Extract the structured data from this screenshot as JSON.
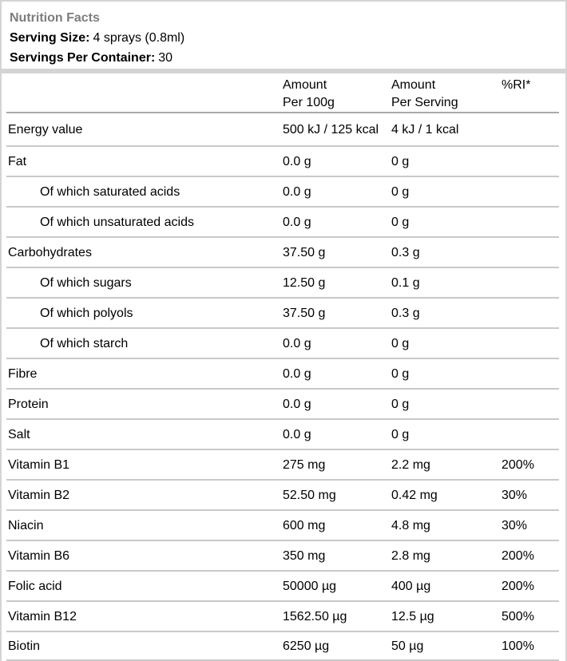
{
  "header": {
    "title": "Nutrition Facts",
    "serving_size_label": "Serving Size:",
    "serving_size_value": "4 sprays (0.8ml)",
    "servings_per_container_label": "Servings Per Container:",
    "servings_per_container_value": "30"
  },
  "table": {
    "columns": {
      "name": "",
      "per_100g_line1": "Amount",
      "per_100g_line2": "Per 100g",
      "per_serving_line1": "Amount",
      "per_serving_line2": "Per Serving",
      "ri": "%RI*"
    },
    "rows": [
      {
        "name": "Energy value",
        "indent": false,
        "per_100g": "500 kJ / 125 kcal",
        "per_serving": "4 kJ / 1 kcal",
        "ri": ""
      },
      {
        "name": "Fat",
        "indent": false,
        "per_100g": "0.0 g",
        "per_serving": "0 g",
        "ri": ""
      },
      {
        "name": "Of which saturated acids",
        "indent": true,
        "per_100g": "0.0 g",
        "per_serving": "0 g",
        "ri": ""
      },
      {
        "name": "Of which unsaturated acids",
        "indent": true,
        "per_100g": "0.0 g",
        "per_serving": "0 g",
        "ri": ""
      },
      {
        "name": "Carbohydrates",
        "indent": false,
        "per_100g": "37.50 g",
        "per_serving": "0.3 g",
        "ri": ""
      },
      {
        "name": "Of which sugars",
        "indent": true,
        "per_100g": "12.50 g",
        "per_serving": "0.1 g",
        "ri": ""
      },
      {
        "name": "Of which polyols",
        "indent": true,
        "per_100g": "37.50 g",
        "per_serving": "0.3 g",
        "ri": ""
      },
      {
        "name": "Of which starch",
        "indent": true,
        "per_100g": "0.0 g",
        "per_serving": "0 g",
        "ri": ""
      },
      {
        "name": "Fibre",
        "indent": false,
        "per_100g": "0.0 g",
        "per_serving": "0 g",
        "ri": ""
      },
      {
        "name": "Protein",
        "indent": false,
        "per_100g": "0.0 g",
        "per_serving": "0 g",
        "ri": ""
      },
      {
        "name": "Salt",
        "indent": false,
        "per_100g": "0.0 g",
        "per_serving": "0 g",
        "ri": ""
      },
      {
        "name": "Vitamin B1",
        "indent": false,
        "per_100g": "275 mg",
        "per_serving": "2.2 mg",
        "ri": "200%"
      },
      {
        "name": "Vitamin B2",
        "indent": false,
        "per_100g": "52.50 mg",
        "per_serving": "0.42 mg",
        "ri": "30%"
      },
      {
        "name": "Niacin",
        "indent": false,
        "per_100g": "600 mg",
        "per_serving": "4.8 mg",
        "ri": "30%"
      },
      {
        "name": "Vitamin B6",
        "indent": false,
        "per_100g": "350 mg",
        "per_serving": "2.8 mg",
        "ri": "200%"
      },
      {
        "name": "Folic acid",
        "indent": false,
        "per_100g": "50000 µg",
        "per_serving": "400 µg",
        "ri": "200%"
      },
      {
        "name": "Vitamin B12",
        "indent": false,
        "per_100g": "1562.50 µg",
        "per_serving": "12.5 µg",
        "ri": "500%"
      },
      {
        "name": "Biotin",
        "indent": false,
        "per_100g": "6250 µg",
        "per_serving": "50 µg",
        "ri": "100%"
      }
    ]
  },
  "colors": {
    "title_gray": "#7d7d7d",
    "border_light": "#d4d4d4",
    "row_separator": "#c9c9c9",
    "header_underline": "#a9a9a9",
    "text": "#000000",
    "background": "#ffffff"
  }
}
